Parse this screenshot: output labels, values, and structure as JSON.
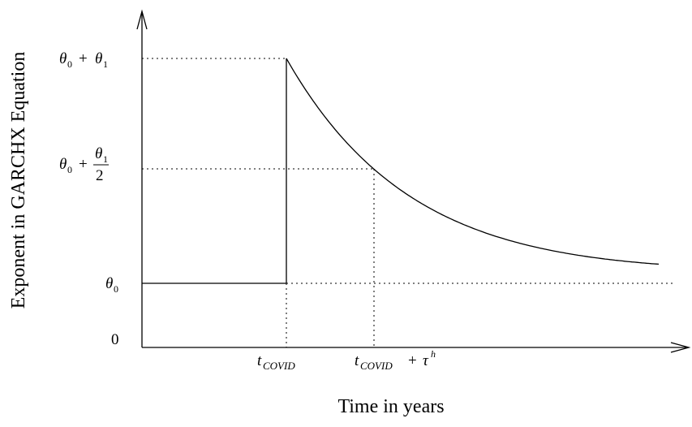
{
  "y_axis_label": "Exponent in GARCHX Equation",
  "x_axis_label": "Time in years",
  "y_labels": {
    "top": {
      "theta0": "θ",
      "theta0_sub": "0",
      "plus": "+",
      "theta1": "θ",
      "theta1_sub": "1"
    },
    "half": {
      "theta0": "θ",
      "theta0_sub": "0",
      "plus": "+",
      "numerator": "θ",
      "numerator_sub": "1",
      "denominator": "2"
    },
    "base": {
      "theta0": "θ",
      "theta0_sub": "0"
    },
    "zero": "0"
  },
  "x_labels": {
    "covid": {
      "t": "t",
      "sub": "COVID"
    },
    "half_life": {
      "t": "t",
      "sub": "COVID",
      "plus": "+",
      "tau": "τ",
      "sup": "h"
    }
  }
}
